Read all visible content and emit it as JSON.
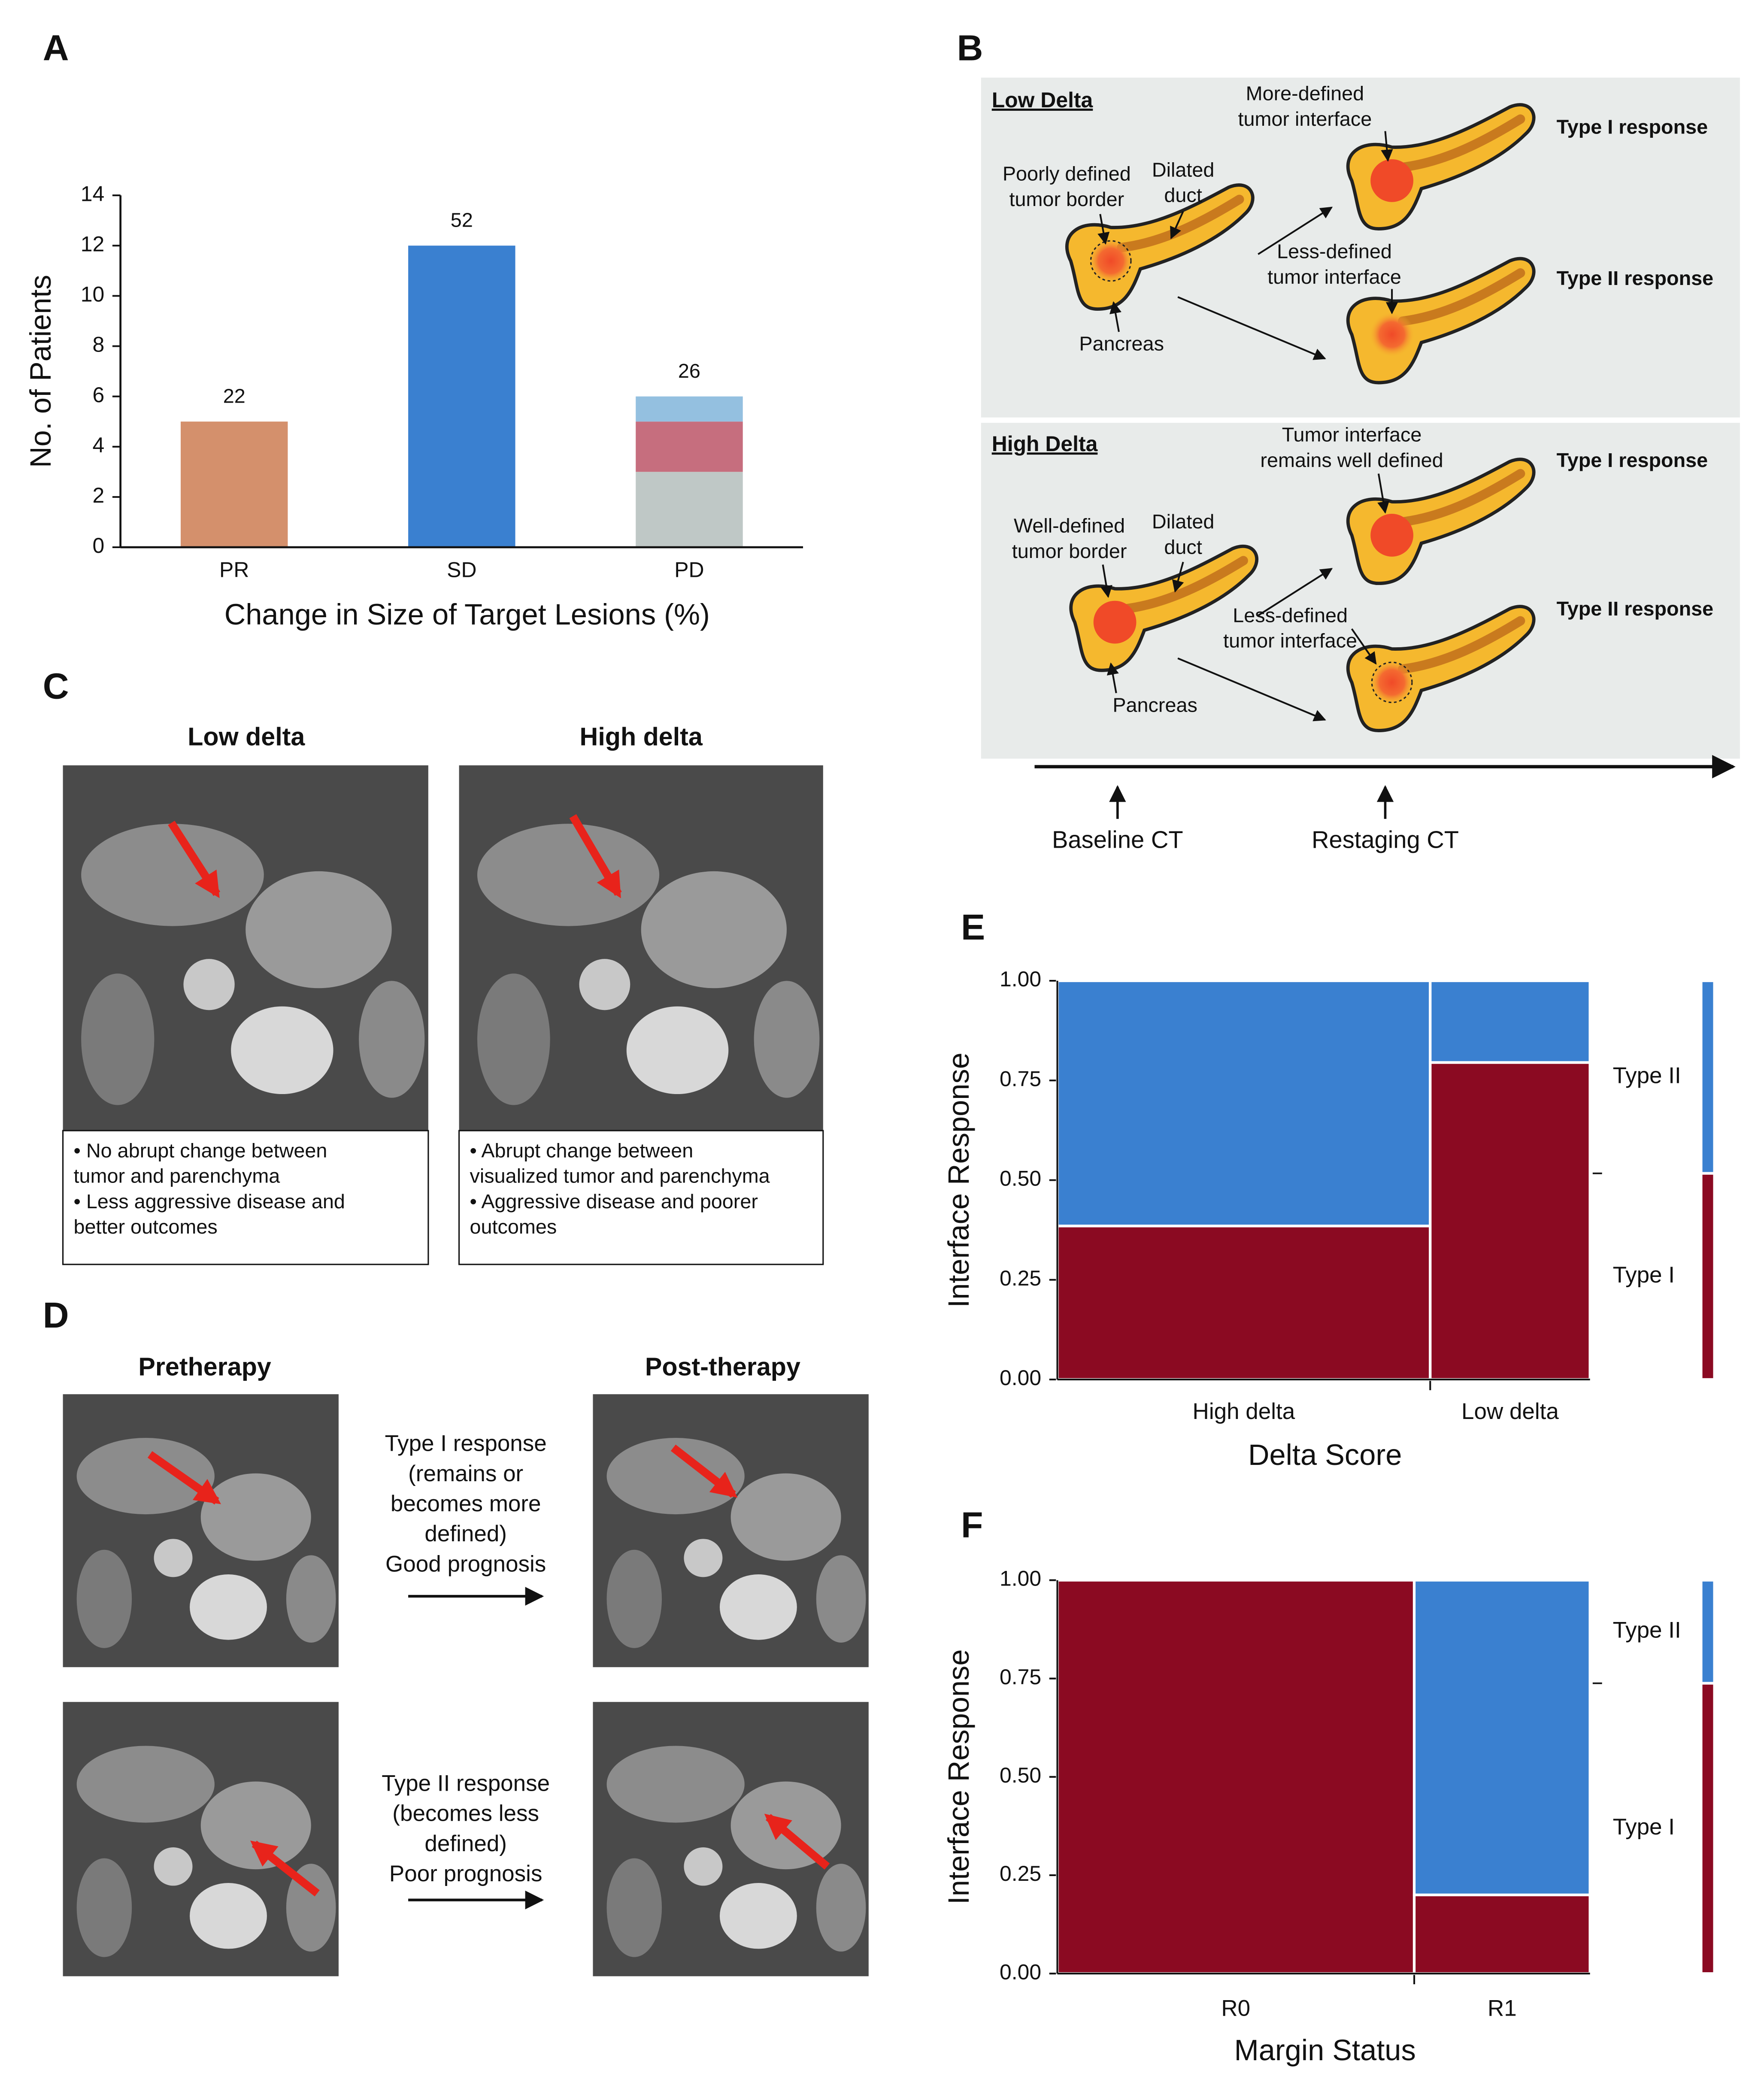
{
  "panel_labels": [
    "A",
    "B",
    "C",
    "D",
    "E",
    "F"
  ],
  "chart_data": [
    {
      "type": "bar",
      "ylabel": "No. of Patients",
      "xlabel": "Change in Size of Target Lesions (%)",
      "categories": [
        "PR",
        "SD",
        "PD"
      ],
      "series": [
        {
          "color": "#d4906c",
          "values": [
            5,
            null,
            null
          ]
        },
        {
          "color": "#3a80d0",
          "values": [
            null,
            12,
            null
          ]
        },
        {
          "color": "#bfc8c6",
          "values": [
            null,
            null,
            3
          ]
        },
        {
          "color": "#c66e7e",
          "values": [
            null,
            null,
            2
          ]
        },
        {
          "color": "#94c0e0",
          "values": [
            null,
            null,
            1
          ]
        }
      ],
      "annotations": [
        "22",
        "52",
        "26"
      ],
      "ylim": [
        0,
        14
      ],
      "yticks": [
        0,
        2,
        4,
        6,
        8,
        10,
        12,
        14
      ]
    },
    {
      "type": "mosaic",
      "ylabel": "Interface Response",
      "xlabel": "Delta Score",
      "categories": [
        "High delta",
        "Low delta"
      ],
      "widths": [
        0.7,
        0.3
      ],
      "series": [
        {
          "name": "Type I",
          "color": "#8b0a22",
          "values": [
            0.385,
            0.795
          ],
          "marginal": 0.517
        },
        {
          "name": "Type II",
          "color": "#3a80d0",
          "values": [
            0.615,
            0.205
          ],
          "marginal": 0.483
        }
      ],
      "ylim": [
        0,
        1
      ],
      "yticks": [
        {
          "value": 0,
          "label": "0.00"
        },
        {
          "value": 0.25,
          "label": "0.25"
        },
        {
          "value": 0.5,
          "label": "0.50"
        },
        {
          "value": 0.75,
          "label": "0.75"
        },
        {
          "value": 1,
          "label": "1.00"
        }
      ]
    },
    {
      "type": "mosaic",
      "ylabel": "Interface Response",
      "xlabel": "Margin Status",
      "categories": [
        "R0",
        "R1"
      ],
      "widths": [
        0.67,
        0.33
      ],
      "series": [
        {
          "name": "Type I",
          "color": "#8b0a22",
          "values": [
            1.0,
            0.2
          ],
          "marginal": 0.738
        },
        {
          "name": "Type II",
          "color": "#3a80d0",
          "values": [
            0,
            0.8
          ],
          "marginal": 0.262
        }
      ],
      "ylim": [
        0,
        1
      ],
      "yticks": [
        {
          "value": 0,
          "label": "0.00"
        },
        {
          "value": 0.25,
          "label": "0.25"
        },
        {
          "value": 0.5,
          "label": "0.50"
        },
        {
          "value": 0.75,
          "label": "0.75"
        },
        {
          "value": 1,
          "label": "1.00"
        }
      ]
    }
  ],
  "diagram": {
    "panels": [
      {
        "title": "Low Delta",
        "labels": [
          [
            "Poorly defined",
            "tumor border"
          ],
          [
            "Dilated",
            "duct"
          ],
          [
            "Pancreas"
          ],
          [
            "More-defined",
            "tumor interface"
          ],
          [
            "Less-defined",
            "tumor interface"
          ]
        ],
        "responses": [
          "Type I response",
          "Type II response"
        ]
      },
      {
        "title": "High Delta",
        "labels": [
          [
            "Well-defined",
            "tumor border"
          ],
          [
            "Dilated",
            "duct"
          ],
          [
            "Pancreas"
          ],
          [
            "Tumor interface",
            "remains well defined"
          ],
          [
            "Less-defined",
            "tumor interface"
          ]
        ],
        "responses": [
          "Type I response",
          "Type II response"
        ]
      }
    ],
    "timeline": [
      "Baseline CT",
      "Restaging CT"
    ]
  },
  "panel_c": [
    {
      "title": "Low delta",
      "lines": [
        "• No abrupt change between",
        "tumor and parenchyma",
        "• Less aggressive disease and",
        "better outcomes"
      ]
    },
    {
      "title": "High delta",
      "lines": [
        "• Abrupt change between",
        "visualized tumor and parenchyma",
        "• Aggressive disease and poorer",
        "outcomes"
      ]
    }
  ],
  "panel_d": {
    "headers": [
      "Pretherapy",
      "Post-therapy"
    ],
    "responses": [
      [
        "Type I response",
        "(remains or",
        "becomes more",
        "defined)",
        "Good prognosis"
      ],
      [
        "Type II response",
        "(becomes less",
        "defined)",
        "Poor prognosis"
      ]
    ]
  }
}
